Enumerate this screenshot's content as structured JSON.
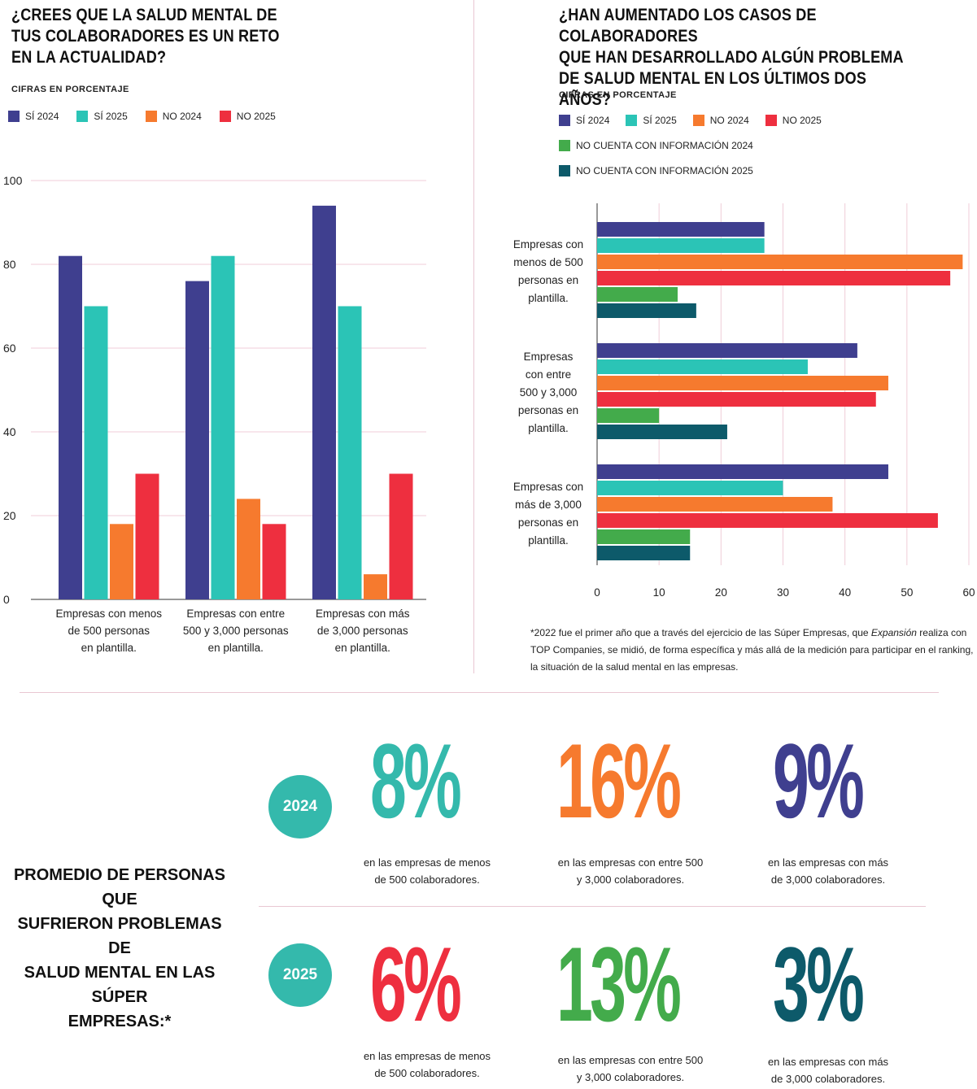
{
  "left": {
    "title_lines": [
      "¿CREES QUE LA SALUD MENTAL DE",
      "TUS COLABORADORES ES UN RETO",
      "EN LA ACTUALIDAD?"
    ],
    "subtitle": "CIFRAS EN PORCENTAJE"
  },
  "right": {
    "title_lines": [
      "¿HAN AUMENTADO LOS CASOS DE COLABORADORES",
      "QUE HAN DESARROLLADO ALGÚN PROBLEMA",
      "DE SALUD MENTAL EN LOS ÚLTIMOS DOS AÑOS?"
    ],
    "subtitle": "CIFRAS EN PORCENTAJE",
    "note": "*2022 fue el primer año que a través del ejercicio de las Súper Empresas, que ",
    "note_italic": "Expansión",
    "note_rest": " realiza con TOP Companies, se midió, de forma específica y más allá de la medición para participar en el ranking, la situación de la salud mental en las empresas."
  },
  "chart_data": [
    {
      "type": "bar",
      "orientation": "vertical",
      "categories": [
        [
          "Empresas con menos",
          "de 500 personas",
          "en plantilla."
        ],
        [
          "Empresas con entre",
          "500 y 3,000 personas",
          "en plantilla."
        ],
        [
          "Empresas con más",
          "de 3,000 personas",
          "en plantilla."
        ]
      ],
      "series": [
        {
          "name": "SÍ 2024",
          "color": "#3f3f8f",
          "values": [
            82,
            76,
            94
          ]
        },
        {
          "name": "SÍ 2025",
          "color": "#2bc4b6",
          "values": [
            70,
            82,
            70
          ]
        },
        {
          "name": "NO 2024",
          "color": "#f67a2e",
          "values": [
            18,
            24,
            6
          ]
        },
        {
          "name": "NO 2025",
          "color": "#ee2f3f",
          "values": [
            30,
            18,
            30
          ]
        }
      ],
      "ylim": [
        0,
        100
      ],
      "yticks": [
        0,
        20,
        40,
        60,
        80,
        100
      ],
      "grid": true
    },
    {
      "type": "bar",
      "orientation": "horizontal",
      "categories": [
        [
          "Empresas con",
          "menos de 500",
          "personas en",
          "plantilla."
        ],
        [
          "Empresas",
          "con entre",
          "500 y 3,000",
          "personas en",
          "plantilla."
        ],
        [
          "Empresas con",
          "más de 3,000",
          "personas en",
          "plantilla."
        ]
      ],
      "series": [
        {
          "name": "SÍ 2024",
          "color": "#3f3f8f",
          "values": [
            27,
            42,
            47
          ]
        },
        {
          "name": "SÍ 2025",
          "color": "#2bc4b6",
          "values": [
            27,
            34,
            30
          ]
        },
        {
          "name": "NO 2024",
          "color": "#f67a2e",
          "values": [
            59,
            47,
            38
          ]
        },
        {
          "name": "NO 2025",
          "color": "#ee2f3f",
          "values": [
            57,
            45,
            55
          ]
        },
        {
          "name": "NO CUENTA CON INFORMACIÓN 2024",
          "color": "#43ab4b",
          "values": [
            13,
            10,
            15
          ]
        },
        {
          "name": "NO CUENTA CON INFORMACIÓN 2025",
          "color": "#0d5a6a",
          "values": [
            16,
            21,
            15
          ]
        }
      ],
      "xlim": [
        0,
        60
      ],
      "xticks": [
        0,
        10,
        20,
        30,
        40,
        50,
        60
      ],
      "grid": true
    }
  ],
  "bottom": {
    "heading_lines": [
      "PROMEDIO DE PERSONAS QUE",
      "SUFRIERON PROBLEMAS DE",
      "SALUD MENTAL EN LAS SÚPER",
      "EMPRESAS:*"
    ],
    "rows": [
      {
        "year": "2024",
        "stats": [
          {
            "value": "8%",
            "color": "#34b9ac",
            "caption_lines": [
              "en las empresas de menos",
              "de 500 colaboradores."
            ]
          },
          {
            "value": "16%",
            "color": "#f67a2e",
            "caption_lines": [
              "en las empresas con entre 500",
              "y 3,000 colaboradores."
            ]
          },
          {
            "value": "9%",
            "color": "#3f3f8f",
            "caption_lines": [
              "en las empresas con más",
              "de 3,000 colaboradores."
            ]
          }
        ]
      },
      {
        "year": "2025",
        "stats": [
          {
            "value": "6%",
            "color": "#ee2f3f",
            "caption_lines": [
              "en las empresas de menos",
              "de 500 colaboradores."
            ]
          },
          {
            "value": "13%",
            "color": "#43ab4b",
            "caption_lines": [
              "en las empresas con entre 500",
              "y 3,000 colaboradores."
            ]
          },
          {
            "value": "3%",
            "color": "#0d5a6a",
            "caption_lines": [
              "en las empresas con más",
              "de 3,000 colaboradores."
            ]
          }
        ]
      }
    ]
  }
}
